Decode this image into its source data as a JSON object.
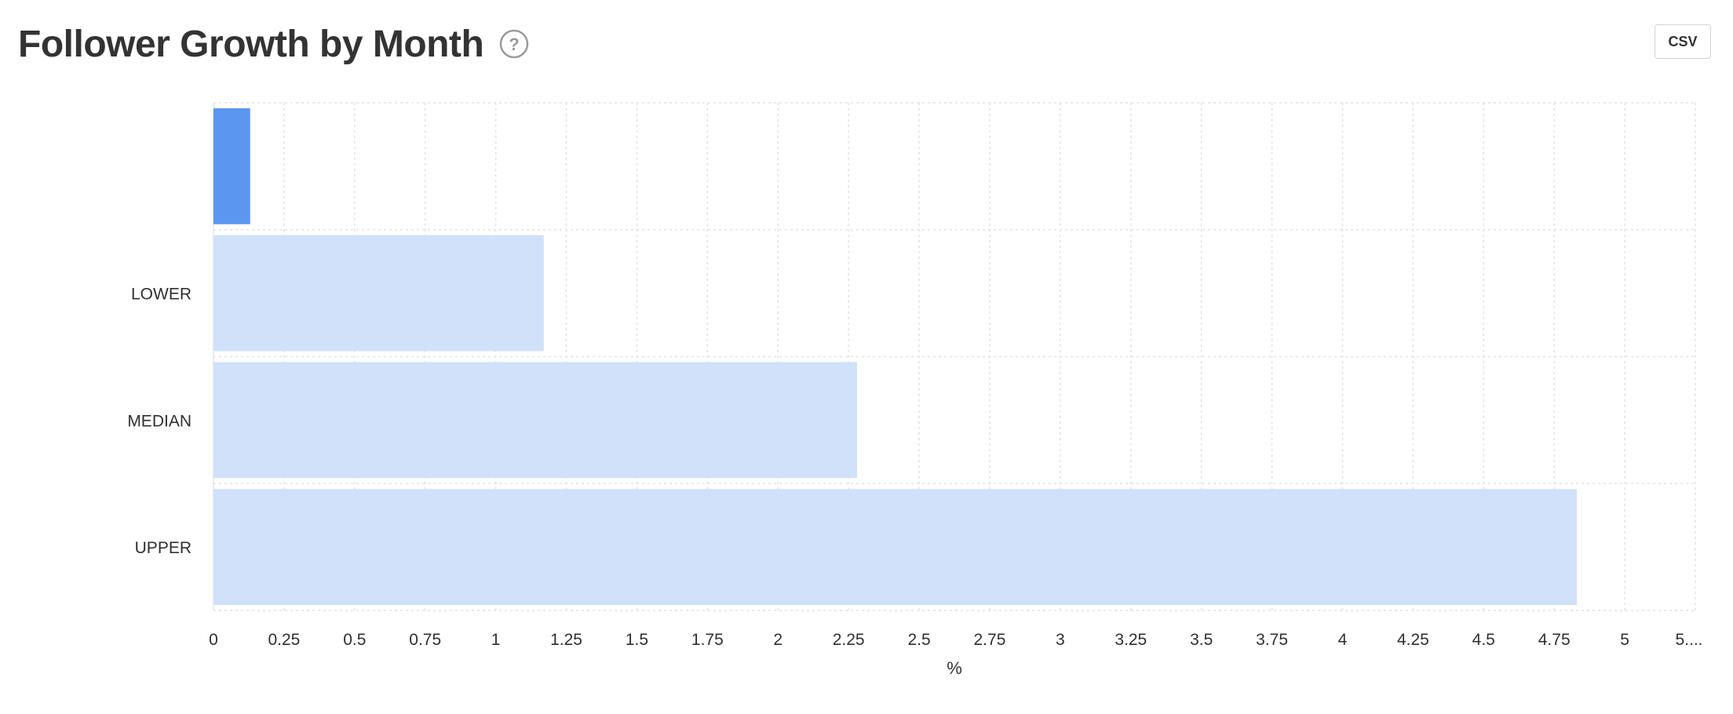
{
  "header": {
    "title": "Follower Growth by Month",
    "help_icon": "question-circle-icon",
    "csv_label": "CSV"
  },
  "colors": {
    "highlight_bar": "#5b96f0",
    "benchmark_bar": "#d0e1f9",
    "grid": "#e2e2e2"
  },
  "chart_data": {
    "type": "bar",
    "orientation": "horizontal",
    "title": "Follower Growth by Month",
    "xlabel": "%",
    "ylabel": "",
    "categories": [
      "",
      "LOWER",
      "MEDIAN",
      "UPPER"
    ],
    "values": [
      0.13,
      1.17,
      2.28,
      4.83
    ],
    "xlim": [
      0,
      5.25
    ],
    "xticks": [
      "0",
      "0.25",
      "0.5",
      "0.75",
      "1",
      "1.25",
      "1.5",
      "1.75",
      "2",
      "2.25",
      "2.5",
      "2.75",
      "3",
      "3.25",
      "3.5",
      "3.75",
      "4",
      "4.25",
      "4.5",
      "4.75",
      "5",
      "5...."
    ],
    "grid": true,
    "legend": "none",
    "highlight_category_index": 0
  }
}
